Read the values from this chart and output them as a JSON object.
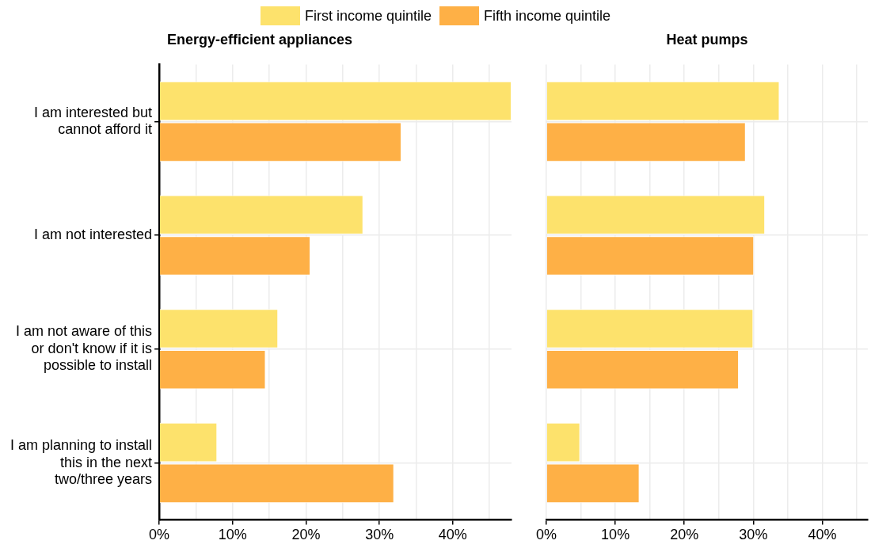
{
  "chart_data": [
    {
      "type": "bar",
      "orientation": "horizontal",
      "title": "Energy-efficient appliances",
      "categories": [
        "I am interested but cannot afford it",
        "I am not interested",
        "I am not aware of this or don't know if it is possible to install",
        "I am planning to install this in the next two/three years"
      ],
      "series": [
        {
          "name": "First income quintile",
          "color": "#fde26c",
          "values": [
            48,
            27.8,
            16.2,
            7.9
          ]
        },
        {
          "name": "Fifth income quintile",
          "color": "#feb046",
          "values": [
            33.0,
            20.6,
            14.5,
            32.0
          ]
        }
      ],
      "xlim": [
        0,
        48
      ],
      "xticks": [
        {
          "value": 0,
          "label": "0%"
        },
        {
          "value": 5,
          "label": null
        },
        {
          "value": 10,
          "label": "10%"
        },
        {
          "value": 15,
          "label": null
        },
        {
          "value": 20,
          "label": "20%"
        },
        {
          "value": 25,
          "label": null
        },
        {
          "value": 30,
          "label": "30%"
        },
        {
          "value": 35,
          "label": null
        },
        {
          "value": 40,
          "label": "40%"
        },
        {
          "value": 45,
          "label": null
        }
      ],
      "grid": true,
      "legend": "top"
    },
    {
      "type": "bar",
      "orientation": "horizontal",
      "title": "Heat pumps",
      "categories": [
        null,
        null,
        null,
        null
      ],
      "series": [
        {
          "color": "#fde26c",
          "values": [
            33.8,
            31.7,
            30.0,
            4.9
          ]
        },
        {
          "color": "#feb046",
          "values": [
            28.9,
            30.1,
            27.9,
            13.5
          ]
        }
      ],
      "xlim": [
        0,
        46.6
      ],
      "xticks": [
        {
          "value": 0,
          "label": "0%"
        },
        {
          "value": 5,
          "label": null
        },
        {
          "value": 10,
          "label": "10%"
        },
        {
          "value": 15,
          "label": null
        },
        {
          "value": 20,
          "label": "20%"
        },
        {
          "value": 25,
          "label": null
        },
        {
          "value": 30,
          "label": "30%"
        },
        {
          "value": 35,
          "label": null
        },
        {
          "value": 40,
          "label": "40%"
        },
        {
          "value": 45,
          "label": null
        }
      ],
      "grid": true,
      "tick_labels": "x"
    }
  ]
}
